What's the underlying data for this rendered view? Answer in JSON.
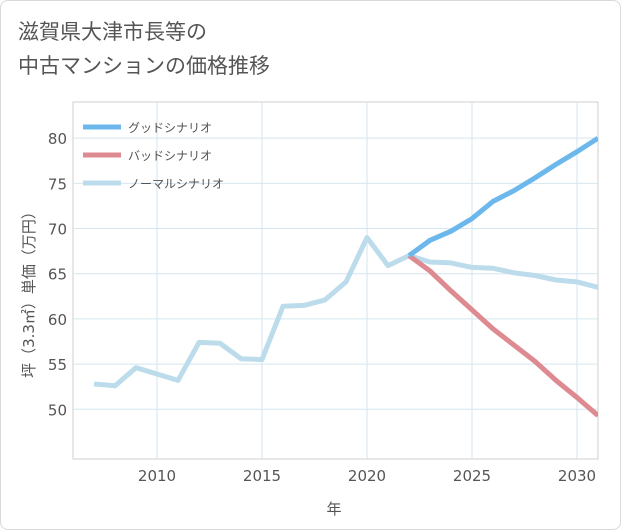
{
  "chart_data": {
    "type": "line",
    "title_lines": [
      "滋賀県大津市長等の",
      "中古マンションの価格推移"
    ],
    "xlabel": "年",
    "ylabel": "坪（3.3㎡）単価（万円）",
    "xlim": [
      2006,
      2031
    ],
    "ylim": [
      44.5,
      84
    ],
    "x_ticks": [
      2010,
      2015,
      2020,
      2025,
      2030
    ],
    "y_ticks": [
      50,
      55,
      60,
      65,
      70,
      75,
      80
    ],
    "grid": true,
    "legend_position": "top-left",
    "series": [
      {
        "name": "グッドシナリオ",
        "color": "#6cb8ec",
        "x": [
          2022,
          2023,
          2024,
          2025,
          2026,
          2027,
          2028,
          2029,
          2030,
          2031
        ],
        "values": [
          67.0,
          68.7,
          69.7,
          71.1,
          73.0,
          74.2,
          75.6,
          77.1,
          78.5,
          80.0
        ]
      },
      {
        "name": "バッドシナリオ",
        "color": "#de8a91",
        "x": [
          2022,
          2023,
          2024,
          2025,
          2026,
          2027,
          2028,
          2029,
          2030,
          2031
        ],
        "values": [
          67.0,
          65.3,
          63.1,
          61.0,
          58.9,
          57.1,
          55.3,
          53.2,
          51.3,
          49.3
        ]
      },
      {
        "name": "ノーマルシナリオ",
        "color": "#bcdcec",
        "x": [
          2007,
          2008,
          2009,
          2010,
          2011,
          2012,
          2013,
          2014,
          2015,
          2016,
          2017,
          2018,
          2019,
          2020,
          2021,
          2022,
          2023,
          2024,
          2025,
          2026,
          2027,
          2028,
          2029,
          2030,
          2031
        ],
        "values": [
          52.8,
          52.6,
          54.6,
          53.9,
          53.2,
          57.4,
          57.3,
          55.6,
          55.5,
          61.4,
          61.5,
          62.1,
          64.1,
          69.0,
          65.9,
          67.0,
          66.3,
          66.2,
          65.7,
          65.6,
          65.1,
          64.8,
          64.3,
          64.1,
          63.5
        ]
      }
    ]
  }
}
